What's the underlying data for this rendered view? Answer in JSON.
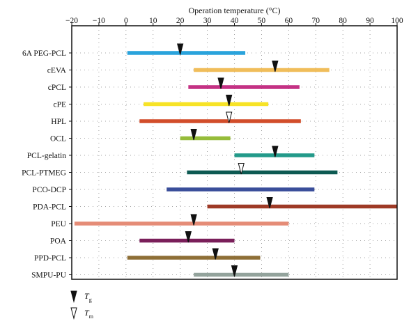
{
  "chart_data": {
    "type": "range-bar",
    "xlabel": "Operation temperature (°C)",
    "xlim": [
      -20,
      100
    ],
    "xticks": [
      -20,
      -10,
      0,
      10,
      20,
      30,
      40,
      50,
      60,
      70,
      80,
      90,
      100
    ],
    "grid": true,
    "legend": {
      "placement": "bottom-left",
      "entries": [
        {
          "marker": "filled-triangle",
          "symbol": "T",
          "sub": "g"
        },
        {
          "marker": "open-triangle",
          "symbol": "T",
          "sub": "m"
        }
      ]
    },
    "items": [
      {
        "name": "6A PEG-PCL",
        "start": 0.5,
        "end": 44,
        "color": "#2aa3dc",
        "marker": {
          "type": "Tg",
          "value": 20
        }
      },
      {
        "name": "cEVA",
        "start": 25,
        "end": 75,
        "color": "#f0bd5a",
        "marker": {
          "type": "Tg",
          "value": 55
        }
      },
      {
        "name": "cPCL",
        "start": 23,
        "end": 64,
        "color": "#c43184",
        "marker": {
          "type": "Tg",
          "value": 35
        }
      },
      {
        "name": "cPE",
        "start": 6.5,
        "end": 52.5,
        "color": "#f7e326",
        "marker": {
          "type": "Tg",
          "value": 38
        }
      },
      {
        "name": "HPL",
        "start": 5,
        "end": 64.5,
        "color": "#d24d2a",
        "marker": {
          "type": "Tm",
          "value": 38
        }
      },
      {
        "name": "OCL",
        "start": 20,
        "end": 38.5,
        "color": "#96bc3a",
        "marker": {
          "type": "Tg",
          "value": 25
        }
      },
      {
        "name": "PCL-gelatin",
        "start": 40,
        "end": 69.5,
        "color": "#239a8a",
        "marker": {
          "type": "Tg",
          "value": 55
        }
      },
      {
        "name": "PCL-PTMEG",
        "start": 22.5,
        "end": 78,
        "color": "#0d5a52",
        "marker": {
          "type": "Tm",
          "value": 42.5
        }
      },
      {
        "name": "PCO-DCP",
        "start": 15,
        "end": 69.5,
        "color": "#3a4e9a",
        "marker": null
      },
      {
        "name": "PDA-PCL",
        "start": 30,
        "end": 100,
        "color": "#9e3a26",
        "marker": {
          "type": "Tg",
          "value": 53
        }
      },
      {
        "name": "PEU",
        "start": -19,
        "end": 60,
        "color": "#e58c77",
        "marker": {
          "type": "Tg",
          "value": 25
        }
      },
      {
        "name": "POA",
        "start": 5,
        "end": 40,
        "color": "#7a1f5a",
        "marker": {
          "type": "Tg",
          "value": 23
        }
      },
      {
        "name": "PPD-PCL",
        "start": 0.5,
        "end": 49.5,
        "color": "#8e6f36",
        "marker": {
          "type": "Tg",
          "value": 33
        }
      },
      {
        "name": "SMPU-PU",
        "start": 25,
        "end": 60,
        "color": "#93a39c",
        "marker": {
          "type": "Tg",
          "value": 40
        }
      }
    ]
  }
}
